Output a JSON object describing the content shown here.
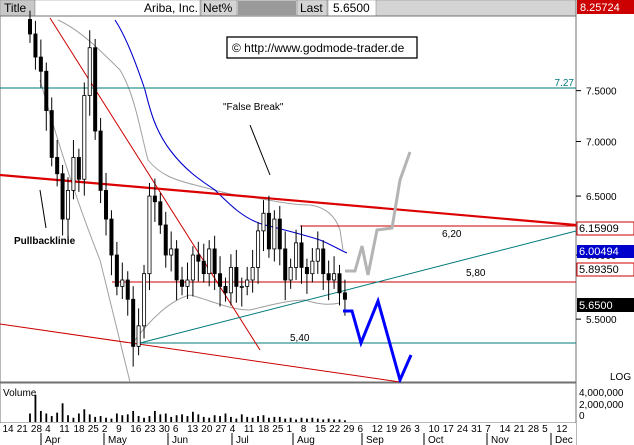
{
  "header": {
    "field_label": "Title",
    "title": "Ariba, Inc.",
    "scale_mode": "Net%",
    "last_label": "Last",
    "last_value": "5.6500",
    "high_tag": "8.25724"
  },
  "watermark": "© http://www.godmode-trader.de",
  "annotations": {
    "false_break": "\"False Break\"",
    "pullback": "Pullbacklinie",
    "level_620": "6,20",
    "level_580": "5,80",
    "level_540": "5,40",
    "level_727": "7.27"
  },
  "price_tags": {
    "t1": "6.15909",
    "t2": "6.00494",
    "t3": "5.89350",
    "last": "5.6500"
  },
  "axis_mode": "LOG",
  "volume": {
    "label": "Volume",
    "ticks": [
      "4,000,000",
      "2,000,000",
      "0"
    ]
  },
  "colors": {
    "candle": "#000000",
    "support_hline": "#cc0000",
    "resistance": "#dd0000",
    "trend_red": "#cc0000",
    "ma": "#0000cc",
    "bollinger": "#a0a0a0",
    "teal": "#007a7a",
    "projection_blue": "#0000ff",
    "projection_gray": "#b4b4b4",
    "high_tag_bg": "#cc0000",
    "tag_blue_bg": "#0000cc",
    "last_tag_bg": "#000000"
  },
  "chart_data": {
    "type": "candlestick",
    "y_scale": "log",
    "ylim": [
      5.05,
      8.3
    ],
    "y_ticks": [
      "7.5000",
      "7.0000",
      "6.5000",
      "6.0000",
      "5.5000"
    ],
    "x_day_ticks": [
      "14",
      "21",
      "28",
      "4",
      "11",
      "18",
      "25",
      "2",
      "9",
      "16",
      "23",
      "30",
      "6",
      "13",
      "20",
      "27",
      "4",
      "11",
      "18",
      "25",
      "1",
      "8",
      "15",
      "22",
      "29",
      "6",
      "12",
      "19",
      "26",
      "3",
      "10",
      "17",
      "24",
      "31",
      "7",
      "14",
      "21",
      "28",
      "5",
      "12"
    ],
    "x_months": [
      "Apr",
      "May",
      "Jun",
      "Jul",
      "Aug",
      "Sep",
      "Oct",
      "Nov",
      "Dec"
    ],
    "closes": [
      8.1,
      7.85,
      7.7,
      7.3,
      6.85,
      6.7,
      6.3,
      6.55,
      6.85,
      6.65,
      7.45,
      7.95,
      7.1,
      6.55,
      6.3,
      6.0,
      5.75,
      5.8,
      5.65,
      5.3,
      5.45,
      5.85,
      6.5,
      6.45,
      6.25,
      6.0,
      6.05,
      5.8,
      5.75,
      5.8,
      6.0,
      5.95,
      5.85,
      6.05,
      5.85,
      5.75,
      5.7,
      5.9,
      5.75,
      5.75,
      5.8,
      5.9,
      6.2,
      6.35,
      6.05,
      6.3,
      6.05,
      5.8,
      5.9,
      6.1,
      5.9,
      5.85,
      5.95,
      6.05,
      5.85,
      5.8,
      5.85,
      5.7,
      5.65
    ],
    "ma_points": [
      [
        30,
        7.95
      ],
      [
        48,
        7.6
      ],
      [
        65,
        7.1
      ],
      [
        80,
        6.8
      ],
      [
        100,
        6.55
      ],
      [
        120,
        6.4
      ],
      [
        140,
        6.25
      ],
      [
        160,
        6.15
      ],
      [
        180,
        6.05
      ],
      [
        200,
        5.95
      ],
      [
        215,
        5.85
      ],
      [
        225,
        5.8
      ]
    ],
    "levels": {
      "h727": 7.27,
      "h620": 6.2,
      "h580": 5.8,
      "h540": 5.4
    },
    "volume_values": [
      1.0,
      3.2,
      1.3,
      1.0,
      0.7,
      1.1,
      2.2,
      0.8,
      0.5,
      1.0,
      1.5,
      0.9,
      0.6,
      0.7,
      0.5,
      0.4,
      1.0,
      0.8,
      0.9,
      1.3,
      0.7,
      0.5,
      0.7,
      1.3,
      0.9,
      1.0,
      0.6,
      0.8,
      0.9,
      0.7,
      1.2,
      0.9,
      0.6,
      0.5,
      0.8,
      0.7,
      1.0,
      0.6,
      0.4,
      0.9,
      0.6,
      0.5,
      0.7,
      0.8,
      0.5,
      0.6,
      0.6,
      0.4,
      0.5,
      0.3,
      0.5,
      0.4,
      0.5,
      0.4,
      0.3,
      0.4,
      0.3,
      0.3,
      0.2
    ]
  }
}
